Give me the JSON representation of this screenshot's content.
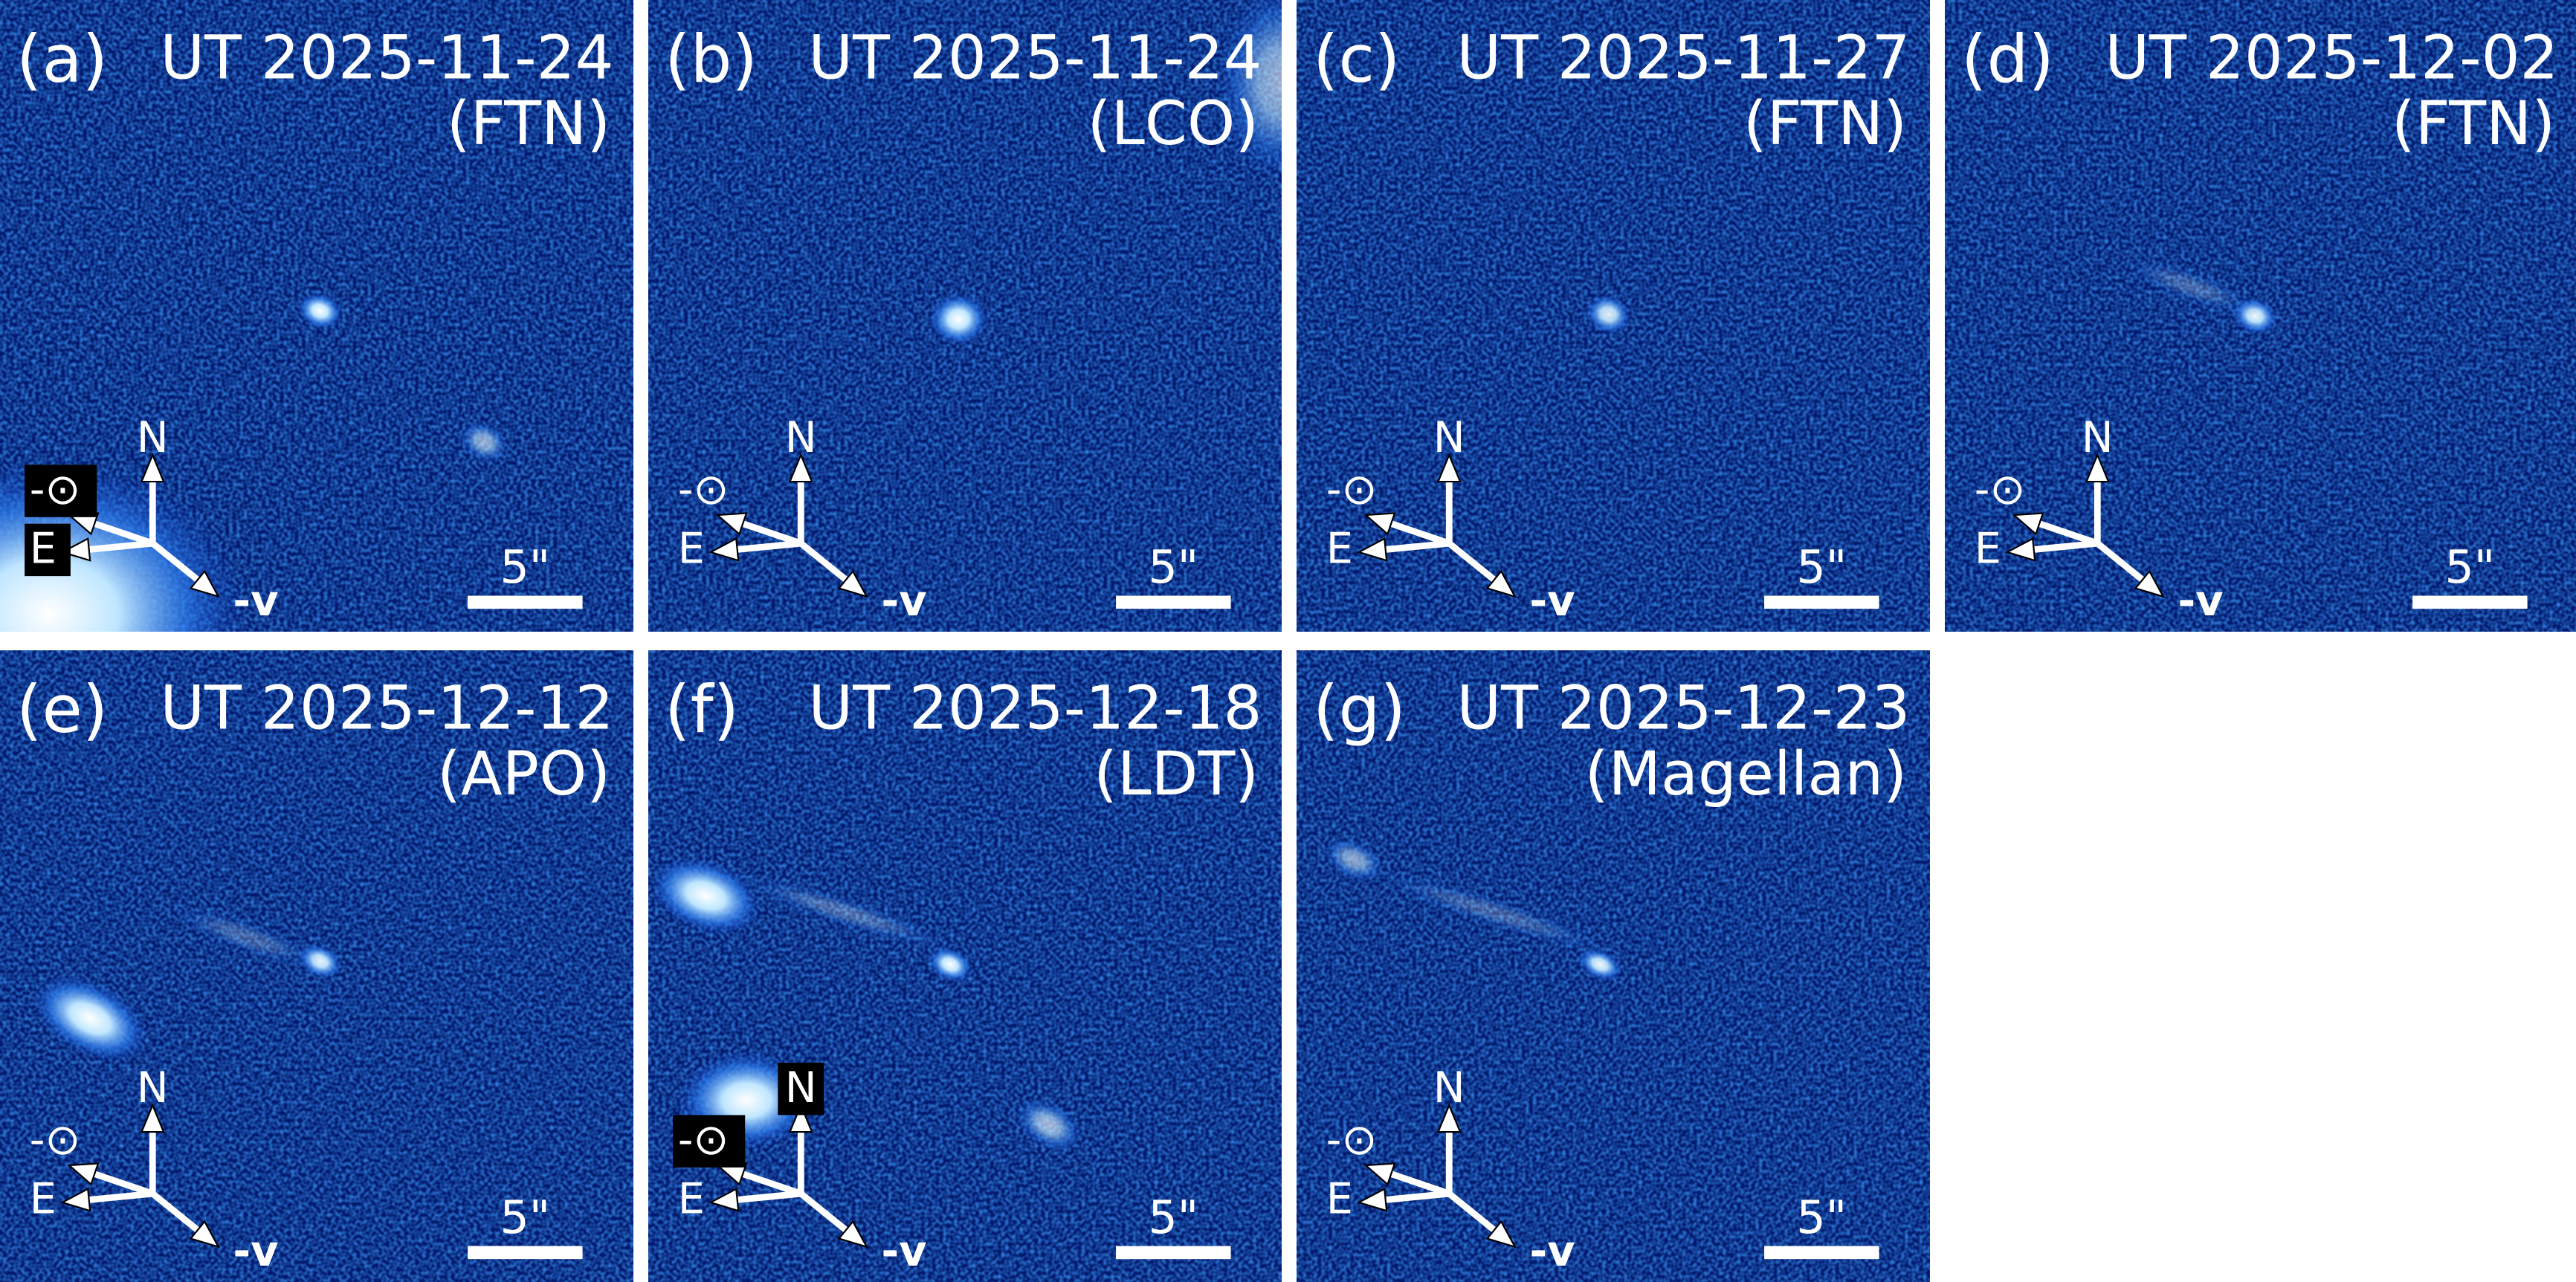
{
  "compass_labels": {
    "north": "N",
    "sun": "-⊙",
    "east": "E",
    "velocity": "-v",
    "scale": "5\""
  },
  "panels": [
    {
      "label": "(a)",
      "date": "UT 2025-11-24",
      "site": "(FTN)"
    },
    {
      "label": "(b)",
      "date": "UT 2025-11-24",
      "site": "(LCO)"
    },
    {
      "label": "(c)",
      "date": "UT 2025-11-27",
      "site": "(FTN)"
    },
    {
      "label": "(d)",
      "date": "UT 2025-12-02",
      "site": "(FTN)"
    },
    {
      "label": "(e)",
      "date": "UT 2025-12-12",
      "site": "(APO)"
    },
    {
      "label": "(f)",
      "date": "UT 2025-12-18",
      "site": "(LDT)"
    },
    {
      "label": "(g)",
      "date": "UT 2025-12-23",
      "site": "(Magellan)"
    }
  ]
}
